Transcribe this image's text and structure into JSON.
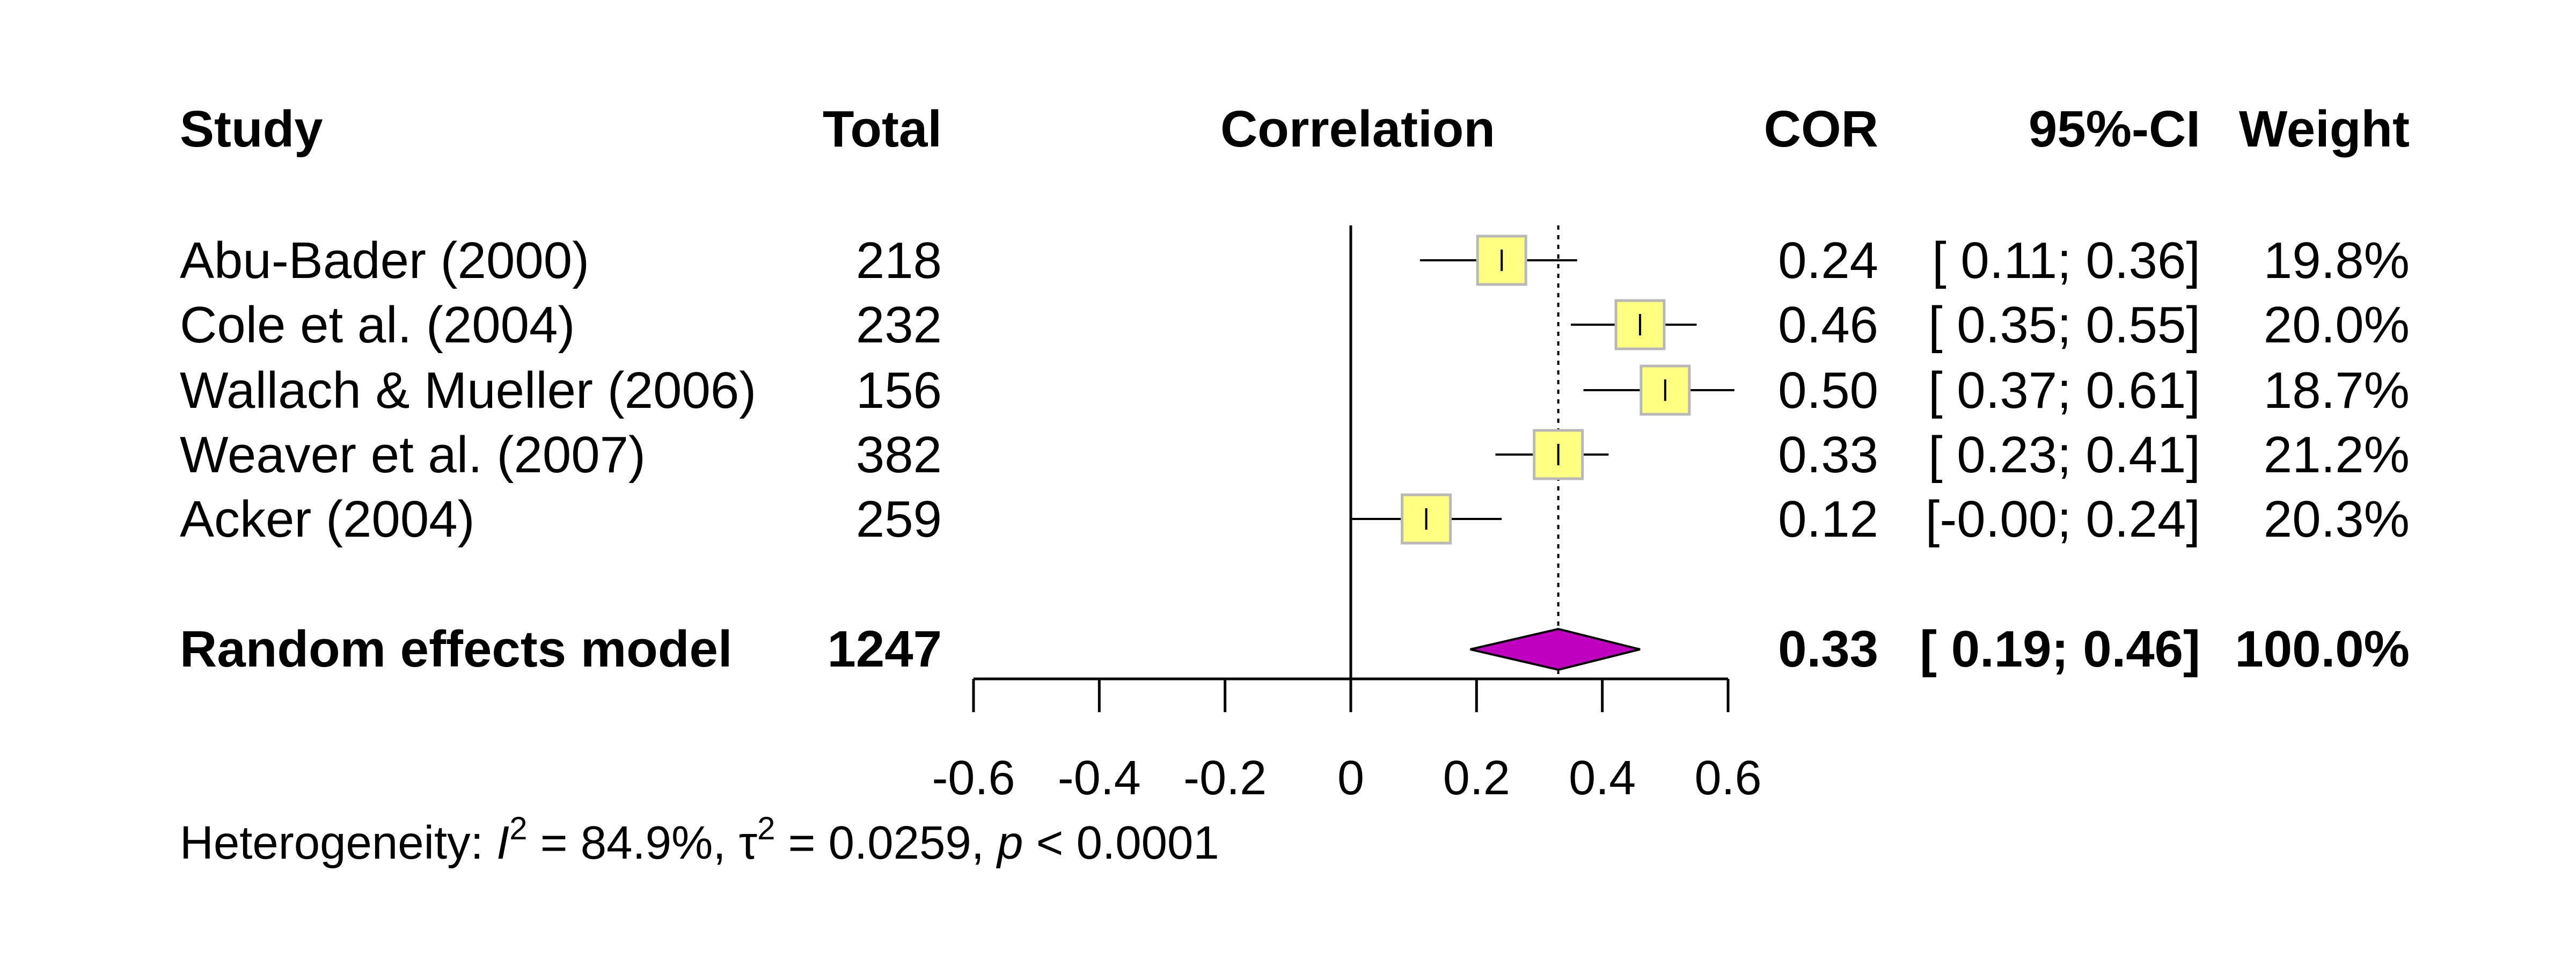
{
  "chart_data": {
    "type": "forest",
    "headers": {
      "study": "Study",
      "total": "Total",
      "effect": "Correlation",
      "cor": "COR",
      "ci": "95%-CI",
      "weight": "Weight"
    },
    "studies": [
      {
        "label": "Abu-Bader (2000)",
        "total": "218",
        "cor": 0.24,
        "lower": 0.11,
        "upper": 0.36,
        "cor_text": "0.24",
        "ci_text": "[ 0.11; 0.36]",
        "weight_text": "19.8%"
      },
      {
        "label": "Cole et al. (2004)",
        "total": "232",
        "cor": 0.46,
        "lower": 0.35,
        "upper": 0.55,
        "cor_text": "0.46",
        "ci_text": "[ 0.35; 0.55]",
        "weight_text": "20.0%"
      },
      {
        "label": "Wallach & Mueller (2006)",
        "total": "156",
        "cor": 0.5,
        "lower": 0.37,
        "upper": 0.61,
        "cor_text": "0.50",
        "ci_text": "[ 0.37; 0.61]",
        "weight_text": "18.7%"
      },
      {
        "label": "Weaver et al. (2007)",
        "total": "382",
        "cor": 0.33,
        "lower": 0.23,
        "upper": 0.41,
        "cor_text": "0.33",
        "ci_text": "[ 0.23; 0.41]",
        "weight_text": "21.2%"
      },
      {
        "label": "Acker (2004)",
        "total": "259",
        "cor": 0.12,
        "lower": -0.0,
        "upper": 0.24,
        "cor_text": "0.12",
        "ci_text": "[-0.00; 0.24]",
        "weight_text": "20.3%"
      }
    ],
    "pooled": {
      "label": "Random effects model",
      "total": "1247",
      "cor": 0.33,
      "lower": 0.19,
      "upper": 0.46,
      "cor_text": "0.33",
      "ci_text": "[ 0.19; 0.46]",
      "weight_text": "100.0%"
    },
    "x_ticks": [
      -0.6,
      -0.4,
      -0.2,
      0,
      0.2,
      0.4,
      0.6
    ],
    "x_tick_labels": [
      "-0.6",
      "-0.4",
      "-0.2",
      "0",
      "0.2",
      "0.4",
      "0.6"
    ],
    "xlim": [
      -0.6,
      0.6
    ],
    "null_value": 0,
    "colors": {
      "square_fill": "#ffff80",
      "square_stroke": "#b8b8b8",
      "diamond": "#c000c0"
    },
    "heterogeneity": {
      "prefix": "Heterogeneity: ",
      "i2_symbol": "I",
      "i2_value": " = 84.9%, ",
      "tau_symbol": "τ",
      "tau_value": " = 0.0259, ",
      "p_symbol": "p",
      "p_value": " < 0.0001",
      "superscript": "2"
    }
  }
}
